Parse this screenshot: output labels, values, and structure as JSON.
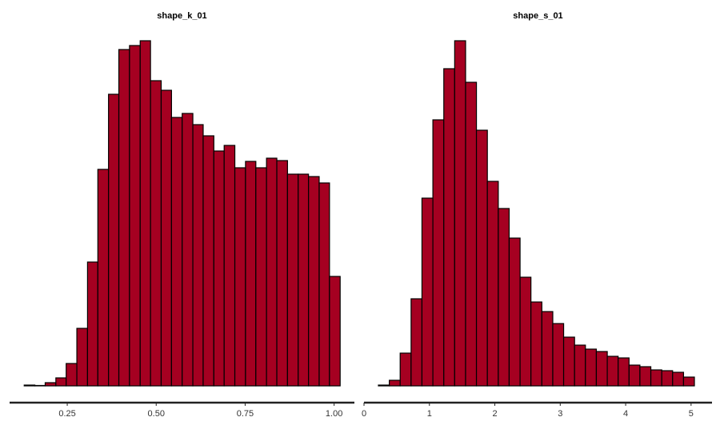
{
  "chart_data": [
    {
      "type": "histogram",
      "title": "shape_k_01",
      "color": "#a50021",
      "bins": [
        0.129,
        0.159,
        0.188,
        0.218,
        0.247,
        0.277,
        0.307,
        0.336,
        0.366,
        0.395,
        0.425,
        0.455,
        0.484,
        0.514,
        0.543,
        0.573,
        0.603,
        0.632,
        0.662,
        0.691,
        0.721,
        0.751,
        0.78,
        0.81,
        0.839,
        0.869,
        0.899,
        0.928,
        0.958,
        0.987,
        1.017
      ],
      "values": [
        1,
        0.5,
        4,
        10,
        28,
        72,
        155,
        271,
        365,
        421,
        426,
        432,
        382,
        370,
        336,
        341,
        327,
        313,
        294,
        301,
        273,
        281,
        273,
        285,
        282,
        265,
        265,
        262,
        254,
        137
      ],
      "xlim": [
        0.088,
        1.057
      ],
      "ylim": [
        0,
        432
      ],
      "xticks": [
        0.25,
        {
          "value": 0.5,
          "label": "0.50"
        },
        0.75,
        {
          "value": 1,
          "label": "1.00"
        }
      ]
    },
    {
      "type": "histogram",
      "title": "shape_s_01",
      "color": "#a50021",
      "bins": [
        0.22,
        0.387,
        0.553,
        0.72,
        0.886,
        1.053,
        1.22,
        1.386,
        1.553,
        1.719,
        1.886,
        2.053,
        2.219,
        2.386,
        2.552,
        2.719,
        2.886,
        3.052,
        3.219,
        3.385,
        3.552,
        3.719,
        3.885,
        4.052,
        4.218,
        4.385,
        4.552,
        4.718,
        4.885,
        5.051
      ],
      "values": [
        1,
        7,
        41,
        109,
        235,
        333,
        397,
        432,
        380,
        320,
        256,
        222,
        185,
        136,
        105,
        93,
        78,
        61,
        51,
        46,
        43,
        37,
        35,
        26,
        24,
        20,
        19,
        17,
        11
      ],
      "xlim": [
        0,
        5.32
      ],
      "ylim": [
        0,
        432
      ],
      "xticks": [
        0,
        1,
        2,
        3,
        4,
        5
      ]
    }
  ]
}
